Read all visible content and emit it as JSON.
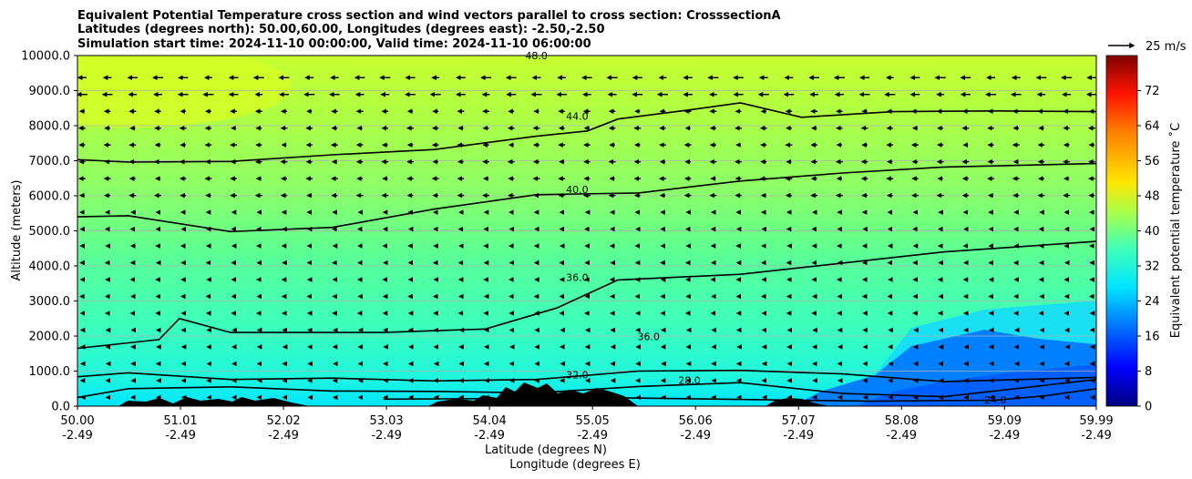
{
  "chart_data": {
    "type": "heatmap",
    "title_lines": [
      "Equivalent Potential Temperature cross section and wind vectors parallel to cross section: CrosssectionA",
      "Latitudes (degrees north): 50.00,60.00, Longitudes (degrees east): -2.50,-2.50",
      "Simulation start time: 2024-11-10 00:00:00, Valid time: 2024-11-10 06:00:00"
    ],
    "xlabel": "Latitude (degrees N)",
    "xlabel2": "Longitude (degrees E)",
    "ylabel": "Altitude (meters)",
    "xlim": [
      50.0,
      59.99
    ],
    "ylim": [
      0,
      10000
    ],
    "x_ticks_lat": [
      "50.00",
      "51.01",
      "52.02",
      "53.03",
      "54.04",
      "55.05",
      "56.06",
      "57.07",
      "58.08",
      "59.09",
      "59.99"
    ],
    "x_ticks_lon": [
      "-2.49",
      "-2.49",
      "-2.49",
      "-2.49",
      "-2.49",
      "-2.49",
      "-2.49",
      "-2.49",
      "-2.49",
      "-2.49",
      "-2.49"
    ],
    "y_ticks": [
      "0.0",
      "1000.0",
      "2000.0",
      "3000.0",
      "4000.0",
      "5000.0",
      "6000.0",
      "7000.0",
      "8000.0",
      "9000.0",
      "10000.0"
    ],
    "grid": "horizontal",
    "colorbar": {
      "label": "Equivalent potential temperature ˚C",
      "min": 0,
      "max": 80,
      "ticks": [
        "0",
        "8",
        "16",
        "24",
        "32",
        "40",
        "48",
        "56",
        "64",
        "72"
      ]
    },
    "quiver_key": "25 m/s",
    "contours": [
      {
        "label": "44.0",
        "points": [
          [
            50.0,
            7030
          ],
          [
            50.5,
            6960
          ],
          [
            51.5,
            6980
          ],
          [
            52.5,
            7170
          ],
          [
            53.5,
            7320
          ],
          [
            54.5,
            7700
          ],
          [
            55.0,
            7850
          ],
          [
            55.3,
            8190
          ],
          [
            56.0,
            8450
          ],
          [
            56.5,
            8650
          ],
          [
            57.1,
            8240
          ],
          [
            58.0,
            8400
          ],
          [
            59.0,
            8420
          ],
          [
            59.99,
            8400
          ]
        ]
      },
      {
        "label": "40.0",
        "points": [
          [
            50.0,
            5400
          ],
          [
            50.5,
            5430
          ],
          [
            51.5,
            4980
          ],
          [
            52.5,
            5100
          ],
          [
            53.5,
            5620
          ],
          [
            54.5,
            6030
          ],
          [
            55.5,
            6080
          ],
          [
            56.5,
            6420
          ],
          [
            57.5,
            6650
          ],
          [
            58.5,
            6820
          ],
          [
            59.99,
            6920
          ]
        ]
      },
      {
        "label": "36.0",
        "points": [
          [
            50.0,
            1650
          ],
          [
            50.8,
            1900
          ],
          [
            51.0,
            2500
          ],
          [
            51.5,
            2100
          ],
          [
            53.0,
            2100
          ],
          [
            54.0,
            2200
          ],
          [
            54.7,
            2800
          ],
          [
            55.3,
            3600
          ],
          [
            56.5,
            3760
          ],
          [
            57.5,
            4080
          ],
          [
            58.5,
            4400
          ],
          [
            59.99,
            4700
          ]
        ]
      },
      {
        "label": "32.0",
        "points": [
          [
            50.0,
            840
          ],
          [
            50.5,
            950
          ],
          [
            51.5,
            760
          ],
          [
            52.5,
            800
          ],
          [
            53.5,
            720
          ],
          [
            54.5,
            760
          ],
          [
            55.5,
            1000
          ],
          [
            56.5,
            1020
          ],
          [
            57.5,
            920
          ],
          [
            58.5,
            700
          ],
          [
            59.99,
            820
          ]
        ]
      },
      {
        "label": "28.0",
        "points": [
          [
            50.0,
            250
          ],
          [
            50.5,
            500
          ],
          [
            51.5,
            550
          ],
          [
            52.5,
            430
          ],
          [
            53.5,
            420
          ],
          [
            54.5,
            380
          ],
          [
            55.5,
            560
          ],
          [
            56.5,
            670
          ],
          [
            57.5,
            360
          ],
          [
            58.5,
            270
          ],
          [
            59.99,
            760
          ]
        ]
      },
      {
        "label": "24.0",
        "points": [
          [
            53.0,
            200
          ],
          [
            54.5,
            220
          ],
          [
            55.0,
            250
          ],
          [
            57.8,
            140
          ],
          [
            58.5,
            160
          ],
          [
            59.0,
            170
          ],
          [
            59.5,
            300
          ],
          [
            59.99,
            500
          ]
        ]
      }
    ],
    "contour_label_positions": [
      {
        "text": "48.0",
        "x": 54.5,
        "y": 9980
      },
      {
        "text": "44.0",
        "x": 54.9,
        "y": 8250
      },
      {
        "text": "40.0",
        "x": 54.9,
        "y": 6150
      },
      {
        "text": "36.0",
        "x": 54.9,
        "y": 3650
      },
      {
        "text": "36.0",
        "x": 55.6,
        "y": 1960
      },
      {
        "text": "32.0",
        "x": 54.9,
        "y": 870
      },
      {
        "text": "28.0",
        "x": 56.0,
        "y": 720
      },
      {
        "text": "24.0",
        "x": 59.0,
        "y": 150
      }
    ],
    "wind_vectors": "horizontal easterly flow (arrows pointing left, 0-12 m/s) across the section"
  }
}
